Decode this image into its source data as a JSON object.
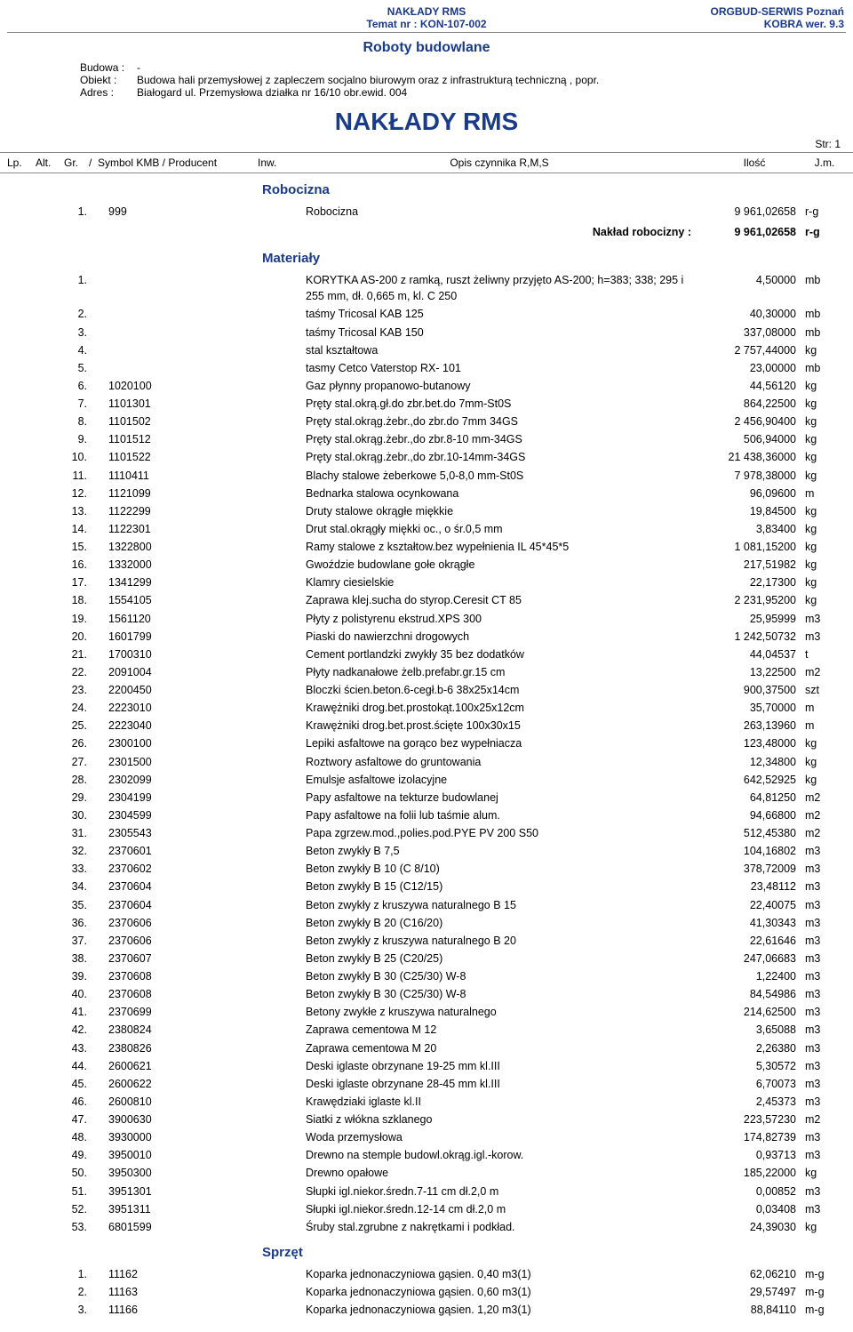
{
  "header": {
    "center_line1": "NAKŁADY  RMS",
    "center_line2": "Temat nr : KON-107-002",
    "right_line1": "ORGBUD-SERWIS Poznań",
    "right_line2": "KOBRA wer. 9.3",
    "center_color": "#1a3a8a",
    "right_color": "#1a3a8a"
  },
  "title_roboty": "Roboty budowlane",
  "meta": {
    "budowa_label": "Budowa :",
    "budowa_value": "-",
    "obiekt_label": "Obiekt :",
    "obiekt_value": "Budowa hali przemysłowej z zapleczem socjalno biurowym oraz z infrastrukturą techniczną , popr.",
    "adres_label": "Adres :",
    "adres_value": "Białogard ul. Przemysłowa  działka nr 16/10 obr.ewid. 004"
  },
  "big_title": "NAKŁADY  RMS",
  "page_str": "Str: 1",
  "col_headers": {
    "lp": "Lp.",
    "alt": "Alt.",
    "gr": "Gr.",
    "slash1": "/",
    "symbol": "Symbol KMB  /  Producent",
    "inw": "Inw.",
    "opis": "Opis czynnika R,M,S",
    "ilosc": "Ilość",
    "jm": "J.m."
  },
  "sections": {
    "robocizna": {
      "title": "Robocizna"
    },
    "materialy": {
      "title": "Materiały"
    },
    "sprzet": {
      "title": "Sprzęt"
    }
  },
  "robocizna_rows": [
    {
      "lp": "1.",
      "sym": "999",
      "desc": "Robocizna",
      "qty": "9 961,02658",
      "unit": "r-g"
    }
  ],
  "robocizna_subtotal": {
    "label": "Nakład robocizny :",
    "qty": "9 961,02658",
    "unit": "r-g"
  },
  "materialy_rows": [
    {
      "lp": "1.",
      "sym": "",
      "desc": "KORYTKA AS-200 z ramką, ruszt żeliwny przyjęto AS-200; h=383; 338; 295 i 255 mm, dł. 0,665 m, kl. C 250",
      "qty": "4,50000",
      "unit": "mb"
    },
    {
      "lp": "2.",
      "sym": "",
      "desc": "taśmy  Tricosal KAB 125",
      "qty": "40,30000",
      "unit": "mb"
    },
    {
      "lp": "3.",
      "sym": "",
      "desc": "taśmy  Tricosal KAB 150",
      "qty": "337,08000",
      "unit": "mb"
    },
    {
      "lp": "4.",
      "sym": "",
      "desc": "stal kształtowa",
      "qty": "2 757,44000",
      "unit": "kg"
    },
    {
      "lp": "5.",
      "sym": "",
      "desc": "tasmy  Cetco Vaterstop RX- 101",
      "qty": "23,00000",
      "unit": "mb"
    },
    {
      "lp": "6.",
      "sym": "1020100",
      "desc": "Gaz płynny propanowo-butanowy",
      "qty": "44,56120",
      "unit": "kg"
    },
    {
      "lp": "7.",
      "sym": "1101301",
      "desc": "Pręty stal.okrą.gł.do zbr.bet.do 7mm-St0S",
      "qty": "864,22500",
      "unit": "kg"
    },
    {
      "lp": "8.",
      "sym": "1101502",
      "desc": "Pręty stal.okrąg.żebr.,do zbr.do 7mm 34GS",
      "qty": "2 456,90400",
      "unit": "kg"
    },
    {
      "lp": "9.",
      "sym": "1101512",
      "desc": "Pręty stal.okrąg.żebr.,do zbr.8-10 mm-34GS",
      "qty": "506,94000",
      "unit": "kg"
    },
    {
      "lp": "10.",
      "sym": "1101522",
      "desc": "Pręty stal.okrąg.żebr.,do zbr.10-14mm-34GS",
      "qty": "21 438,36000",
      "unit": "kg"
    },
    {
      "lp": "11.",
      "sym": "1110411",
      "desc": "Blachy stalowe żeberkowe 5,0-8,0 mm-St0S",
      "qty": "7 978,38000",
      "unit": "kg"
    },
    {
      "lp": "12.",
      "sym": "1121099",
      "desc": "Bednarka stalowa ocynkowana",
      "qty": "96,09600",
      "unit": "m"
    },
    {
      "lp": "13.",
      "sym": "1122299",
      "desc": "Druty stalowe okrągłe miękkie",
      "qty": "19,84500",
      "unit": "kg"
    },
    {
      "lp": "14.",
      "sym": "1122301",
      "desc": "Drut stal.okrągły miękki oc., o śr.0,5 mm",
      "qty": "3,83400",
      "unit": "kg"
    },
    {
      "lp": "15.",
      "sym": "1322800",
      "desc": "Ramy stalowe z kształtow.bez wypełnienia IL 45*45*5",
      "qty": "1 081,15200",
      "unit": "kg"
    },
    {
      "lp": "16.",
      "sym": "1332000",
      "desc": "Gwoździe budowlane gołe okrągłe",
      "qty": "217,51982",
      "unit": "kg"
    },
    {
      "lp": "17.",
      "sym": "1341299",
      "desc": "Klamry ciesielskie",
      "qty": "22,17300",
      "unit": "kg"
    },
    {
      "lp": "18.",
      "sym": "1554105",
      "desc": "Zaprawa klej.sucha do styrop.Ceresit CT 85",
      "qty": "2 231,95200",
      "unit": "kg"
    },
    {
      "lp": "19.",
      "sym": "1561120",
      "desc": "Płyty z polistyrenu ekstrud.XPS 300",
      "qty": "25,95999",
      "unit": "m3"
    },
    {
      "lp": "20.",
      "sym": "1601799",
      "desc": "Piaski do nawierzchni drogowych",
      "qty": "1 242,50732",
      "unit": "m3"
    },
    {
      "lp": "21.",
      "sym": "1700310",
      "desc": "Cement portlandzki zwykły 35 bez dodatków",
      "qty": "44,04537",
      "unit": "t"
    },
    {
      "lp": "22.",
      "sym": "2091004",
      "desc": "Płyty nadkanałowe żelb.prefabr.gr.15 cm",
      "qty": "13,22500",
      "unit": "m2"
    },
    {
      "lp": "23.",
      "sym": "2200450",
      "desc": "Bloczki ścien.beton.6-cegł.b-6 38x25x14cm",
      "qty": "900,37500",
      "unit": "szt"
    },
    {
      "lp": "24.",
      "sym": "2223010",
      "desc": "Krawężniki drog.bet.prostokąt.100x25x12cm",
      "qty": "35,70000",
      "unit": "m"
    },
    {
      "lp": "25.",
      "sym": "2223040",
      "desc": "Krawężniki drog.bet.prost.ścięte 100x30x15",
      "qty": "263,13960",
      "unit": "m"
    },
    {
      "lp": "26.",
      "sym": "2300100",
      "desc": "Lepiki asfaltowe na gorąco bez wypełniacza",
      "qty": "123,48000",
      "unit": "kg"
    },
    {
      "lp": "27.",
      "sym": "2301500",
      "desc": "Roztwory asfaltowe do gruntowania",
      "qty": "12,34800",
      "unit": "kg"
    },
    {
      "lp": "28.",
      "sym": "2302099",
      "desc": "Emulsje asfaltowe izolacyjne",
      "qty": "642,52925",
      "unit": "kg"
    },
    {
      "lp": "29.",
      "sym": "2304199",
      "desc": "Papy asfaltowe na tekturze budowlanej",
      "qty": "64,81250",
      "unit": "m2"
    },
    {
      "lp": "30.",
      "sym": "2304599",
      "desc": "Papy asfaltowe na folii lub taśmie alum.",
      "qty": "94,66800",
      "unit": "m2"
    },
    {
      "lp": "31.",
      "sym": "2305543",
      "desc": "Papa zgrzew.mod.,polies.pod.PYE PV 200 S50",
      "qty": "512,45380",
      "unit": "m2"
    },
    {
      "lp": "32.",
      "sym": "2370601",
      "desc": "Beton zwykły B 7,5",
      "qty": "104,16802",
      "unit": "m3"
    },
    {
      "lp": "33.",
      "sym": "2370602",
      "desc": "Beton zwykły B 10 (C 8/10)",
      "qty": "378,72009",
      "unit": "m3"
    },
    {
      "lp": "34.",
      "sym": "2370604",
      "desc": "Beton zwykły B 15 (C12/15)",
      "qty": "23,48112",
      "unit": "m3"
    },
    {
      "lp": "35.",
      "sym": "2370604",
      "desc": "Beton zwykły z kruszywa naturalnego B 15",
      "qty": "22,40075",
      "unit": "m3"
    },
    {
      "lp": "36.",
      "sym": "2370606",
      "desc": "Beton zwykły B 20 (C16/20)",
      "qty": "41,30343",
      "unit": "m3"
    },
    {
      "lp": "37.",
      "sym": "2370606",
      "desc": "Beton zwykły z kruszywa naturalnego B 20",
      "qty": "22,61646",
      "unit": "m3"
    },
    {
      "lp": "38.",
      "sym": "2370607",
      "desc": "Beton zwykły B 25 (C20/25)",
      "qty": "247,06683",
      "unit": "m3"
    },
    {
      "lp": "39.",
      "sym": "2370608",
      "desc": "Beton zwykły B 30 (C25/30)  W-8",
      "qty": "1,22400",
      "unit": "m3"
    },
    {
      "lp": "40.",
      "sym": "2370608",
      "desc": "Beton zwykły B 30 (C25/30) W-8",
      "qty": "84,54986",
      "unit": "m3"
    },
    {
      "lp": "41.",
      "sym": "2370699",
      "desc": "Betony zwykłe z kruszywa naturalnego",
      "qty": "214,62500",
      "unit": "m3"
    },
    {
      "lp": "42.",
      "sym": "2380824",
      "desc": "Zaprawa cementowa  M 12",
      "qty": "3,65088",
      "unit": "m3"
    },
    {
      "lp": "43.",
      "sym": "2380826",
      "desc": "Zaprawa cementowa  M 20",
      "qty": "2,26380",
      "unit": "m3"
    },
    {
      "lp": "44.",
      "sym": "2600621",
      "desc": "Deski iglaste obrzynane 19-25 mm kl.III",
      "qty": "5,30572",
      "unit": "m3"
    },
    {
      "lp": "45.",
      "sym": "2600622",
      "desc": "Deski iglaste obrzynane 28-45 mm kl.III",
      "qty": "6,70073",
      "unit": "m3"
    },
    {
      "lp": "46.",
      "sym": "2600810",
      "desc": "Krawędziaki iglaste kl.II",
      "qty": "2,45373",
      "unit": "m3"
    },
    {
      "lp": "47.",
      "sym": "3900630",
      "desc": "Siatki z włókna szklanego",
      "qty": "223,57230",
      "unit": "m2"
    },
    {
      "lp": "48.",
      "sym": "3930000",
      "desc": "Woda przemysłowa",
      "qty": "174,82739",
      "unit": "m3"
    },
    {
      "lp": "49.",
      "sym": "3950010",
      "desc": "Drewno na stemple budowl.okrąg.igl.-korow.",
      "qty": "0,93713",
      "unit": "m3"
    },
    {
      "lp": "50.",
      "sym": "3950300",
      "desc": "Drewno opałowe",
      "qty": "185,22000",
      "unit": "kg"
    },
    {
      "lp": "51.",
      "sym": "3951301",
      "desc": "Słupki igl.niekor.średn.7-11 cm dł.2,0 m",
      "qty": "0,00852",
      "unit": "m3"
    },
    {
      "lp": "52.",
      "sym": "3951311",
      "desc": "Słupki igl.niekor.średn.12-14 cm dł.2,0 m",
      "qty": "0,03408",
      "unit": "m3"
    },
    {
      "lp": "53.",
      "sym": "6801599",
      "desc": "Śruby stal.zgrubne z nakrętkami i podkład.",
      "qty": "24,39030",
      "unit": "kg"
    }
  ],
  "sprzet_rows": [
    {
      "lp": "1.",
      "sym": "11162",
      "desc": "Koparka jednonaczyniowa gąsien. 0,40 m3(1)",
      "qty": "62,06210",
      "unit": "m-g"
    },
    {
      "lp": "2.",
      "sym": "11163",
      "desc": "Koparka jednonaczyniowa gąsien. 0,60 m3(1)",
      "qty": "29,57497",
      "unit": "m-g"
    },
    {
      "lp": "3.",
      "sym": "11166",
      "desc": "Koparka jednonaczyniowa gąsien. 1,20 m3(1)",
      "qty": "88,84110",
      "unit": "m-g"
    }
  ]
}
